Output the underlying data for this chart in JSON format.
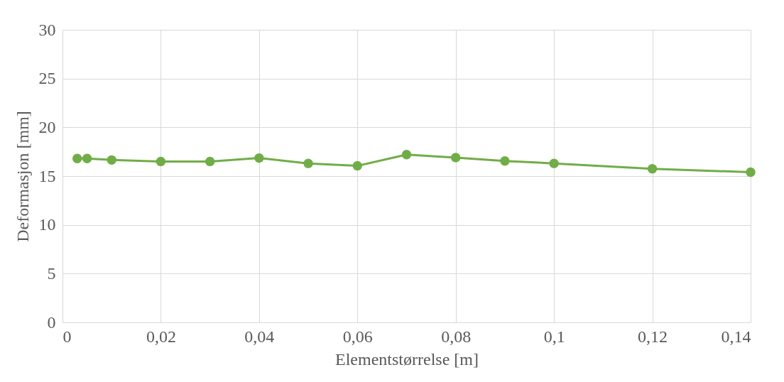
{
  "chart_data": {
    "type": "line",
    "xlabel": "Elementstørrelse [m]",
    "ylabel": "Deformasjon [mm]",
    "x": [
      0.003,
      0.005,
      0.01,
      0.02,
      0.03,
      0.04,
      0.05,
      0.06,
      0.07,
      0.08,
      0.09,
      0.1,
      0.12,
      0.14
    ],
    "series": [
      {
        "color": "#70ad47",
        "values": [
          16.8,
          16.8,
          16.65,
          16.5,
          16.5,
          16.85,
          16.3,
          16.05,
          17.2,
          16.9,
          16.55,
          16.3,
          15.75,
          15.4
        ]
      }
    ],
    "xlim": [
      0,
      0.14
    ],
    "xticks": [
      {
        "value": 0,
        "label": "0"
      },
      {
        "value": 0.02,
        "label": "0,02"
      },
      {
        "value": 0.04,
        "label": "0,04"
      },
      {
        "value": 0.06,
        "label": "0,06"
      },
      {
        "value": 0.08,
        "label": "0,08"
      },
      {
        "value": 0.1,
        "label": "0,1"
      },
      {
        "value": 0.12,
        "label": "0,12"
      },
      {
        "value": 0.14,
        "label": "0,14"
      }
    ],
    "ylim": [
      0,
      30
    ],
    "yticks": [
      0,
      5,
      10,
      15,
      20,
      25,
      30
    ],
    "grid": true,
    "marker": "circle",
    "line_style": "solid"
  }
}
